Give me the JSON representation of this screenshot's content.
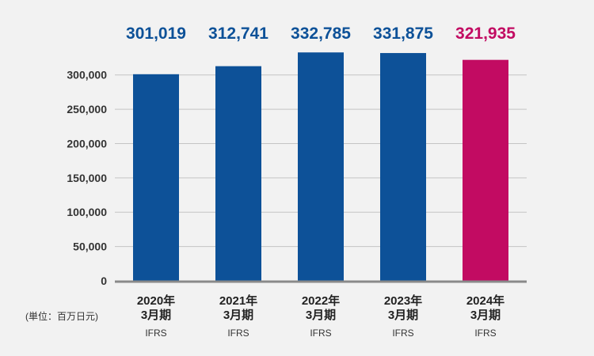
{
  "chart_data": {
    "type": "bar",
    "categories": [
      {
        "year": "2020年",
        "period": "3月期",
        "standard": "IFRS"
      },
      {
        "year": "2021年",
        "period": "3月期",
        "standard": "IFRS"
      },
      {
        "year": "2022年",
        "period": "3月期",
        "standard": "IFRS"
      },
      {
        "year": "2023年",
        "period": "3月期",
        "standard": "IFRS"
      },
      {
        "year": "2024年",
        "period": "3月期",
        "standard": "IFRS"
      }
    ],
    "values": [
      301019,
      312741,
      332785,
      331875,
      321935
    ],
    "data_labels": [
      "301,019",
      "312,741",
      "332,785",
      "331,875",
      "321,935"
    ],
    "bar_colors": [
      "#0d5198",
      "#0d5198",
      "#0d5198",
      "#0d5198",
      "#c20b62"
    ],
    "label_colors": [
      "#0d5198",
      "#0d5198",
      "#0d5198",
      "#0d5198",
      "#c20b62"
    ],
    "y_ticks": [
      0,
      50000,
      100000,
      150000,
      200000,
      250000,
      300000
    ],
    "y_tick_labels": [
      "0",
      "50,000",
      "100,000",
      "150,000",
      "200,000",
      "250,000",
      "300,000"
    ],
    "ylim": [
      0,
      340000
    ],
    "unit_label": "(単位：百万日元)",
    "grid": true,
    "title": "",
    "xlabel": "",
    "ylabel": ""
  }
}
